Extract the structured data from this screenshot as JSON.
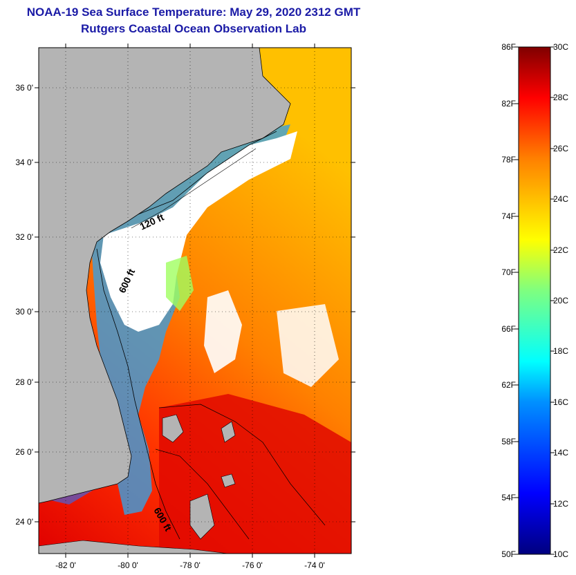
{
  "title": {
    "line1": "NOAA-19 Sea Surface Temperature:  May 29, 2020 2312 GMT",
    "line2": "Rutgers Coastal Ocean Observation Lab"
  },
  "map": {
    "lat_ticks": [
      "36 0'",
      "34 0'",
      "32 0'",
      "30 0'",
      "28 0'",
      "26 0'",
      "24 0'"
    ],
    "lon_ticks": [
      "-82 0'",
      "-80 0'",
      "-78 0'",
      "-76 0'",
      "-74 0'"
    ],
    "contour_labels": [
      "120 ft",
      "600 ft",
      "600 ft"
    ],
    "colors": {
      "land": "#b4b4b4",
      "cloud": "#ffffff",
      "title": "#1a1aa6"
    }
  },
  "colorbar": {
    "fahrenheit": [
      "86F",
      "82F",
      "78F",
      "74F",
      "70F",
      "66F",
      "62F",
      "58F",
      "54F",
      "50F"
    ],
    "celsius": [
      "30C",
      "28C",
      "26C",
      "24C",
      "22C",
      "20C",
      "18C",
      "16C",
      "14C",
      "12C",
      "10C"
    ]
  }
}
